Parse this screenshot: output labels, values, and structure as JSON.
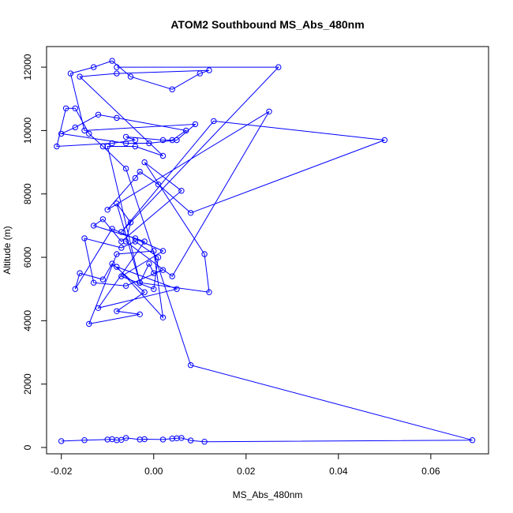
{
  "chart_data": {
    "type": "scatter",
    "title": "ATOM2 Southbound MS_Abs_480nm",
    "xlabel": "MS_Abs_480nm",
    "ylabel": "Altitude (m)",
    "xlim": [
      -0.0232,
      0.0725
    ],
    "ylim": [
      -200,
      12650
    ],
    "x_ticks": [
      -0.02,
      0.0,
      0.02,
      0.04,
      0.06
    ],
    "x_tick_labels": [
      "-0.02",
      "0.00",
      "0.02",
      "0.04",
      "0.06"
    ],
    "y_ticks": [
      0,
      2000,
      4000,
      6000,
      8000,
      10000,
      12000
    ],
    "y_tick_labels": [
      "0",
      "2000",
      "4000",
      "6000",
      "8000",
      "10000",
      "12000"
    ],
    "grid": false,
    "line_and_markers": true,
    "series_color": "#0000ff",
    "series": [
      {
        "x": [
          -0.02,
          -0.015,
          -0.01,
          -0.009,
          -0.008,
          -0.007,
          -0.006,
          -0.003,
          -0.002,
          0.002,
          0.004,
          0.005,
          0.006,
          0.008,
          0.011,
          0.069,
          0.008,
          -0.006,
          -0.011,
          -0.014,
          -0.017,
          -0.019,
          -0.021,
          -0.009,
          -0.004,
          -0.006,
          0.002,
          0.004,
          0.007,
          -0.008,
          -0.012,
          -0.017,
          -0.02,
          -0.006,
          -0.001,
          0.005,
          0.009,
          -0.015,
          -0.018,
          -0.013,
          -0.009,
          -0.005,
          0.004,
          0.01,
          0.012,
          -0.008,
          -0.016,
          0.002,
          -0.004,
          -0.01,
          -0.003,
          -0.001,
          0.0,
          0.002,
          -0.006,
          -0.013,
          -0.015,
          -0.007,
          -0.004,
          0.001,
          0.0,
          -0.007,
          0.002,
          -0.009,
          -0.017,
          -0.016,
          -0.011,
          -0.009,
          -0.002,
          -0.008,
          -0.003,
          -0.014,
          -0.008,
          0.0,
          0.002,
          -0.008,
          0.005,
          -0.012,
          -0.002,
          -0.004,
          -0.013,
          -0.011,
          -0.007,
          0.006,
          -0.002,
          0.011,
          0.012,
          -0.003,
          -0.008,
          -0.005,
          -0.006,
          0.004,
          0.025,
          -0.01,
          -0.004,
          -0.003,
          0.001,
          0.008,
          0.05,
          0.013,
          -0.007,
          0.027,
          -0.008
        ],
        "y": [
          200,
          230,
          250,
          260,
          230,
          240,
          300,
          250,
          260,
          250,
          280,
          290,
          300,
          220,
          180,
          230,
          2600,
          8800,
          9500,
          9900,
          10700,
          10700,
          9500,
          9600,
          9700,
          9800,
          9700,
          9700,
          10000,
          10400,
          10500,
          10100,
          9900,
          9600,
          9600,
          9700,
          10200,
          10000,
          11800,
          12000,
          12200,
          11700,
          11300,
          11800,
          11900,
          11800,
          11700,
          9200,
          9500,
          9500,
          5200,
          5800,
          5500,
          5600,
          5100,
          5200,
          6600,
          6300,
          6500,
          6000,
          5000,
          5400,
          6200,
          6900,
          5000,
          5500,
          5300,
          5800,
          4900,
          4300,
          4200,
          3900,
          6100,
          6200,
          4100,
          5700,
          5000,
          4400,
          6500,
          6600,
          7000,
          7200,
          6500,
          8100,
          9000,
          6100,
          4900,
          5200,
          7700,
          7100,
          6500,
          5400,
          10600,
          7500,
          8500,
          8700,
          8300,
          7400,
          9700,
          10300,
          6800,
          12000,
          12000
        ]
      }
    ]
  }
}
